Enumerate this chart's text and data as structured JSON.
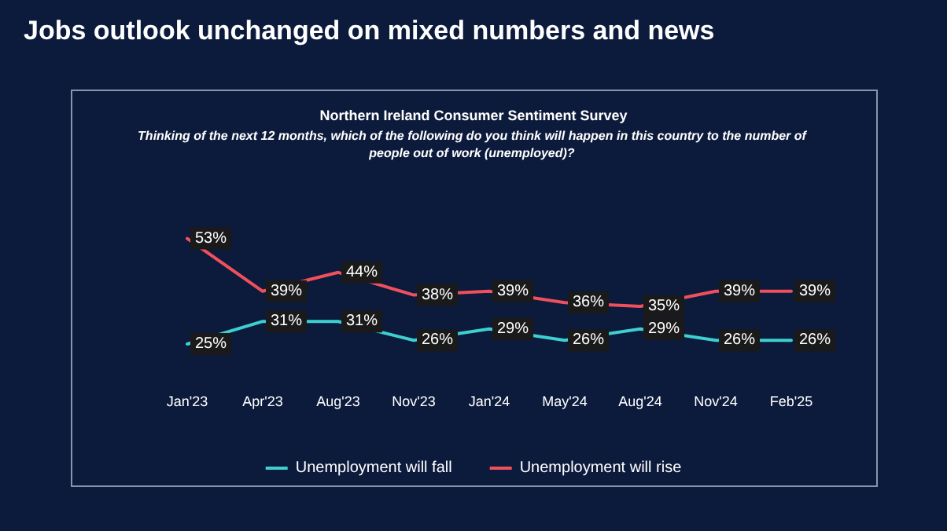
{
  "chart_data": {
    "type": "line",
    "title": "Jobs outlook unchanged on mixed numbers and news",
    "subtitle": "Northern Ireland Consumer Sentiment Survey",
    "annotations": [
      "Thinking of the next 12 months, which of the following do you think will happen in this country to the number of people out of work (unemployed)?"
    ],
    "categories": [
      "Jan'23",
      "Apr'23",
      "Aug'23",
      "Nov'23",
      "Jan'24",
      "May'24",
      "Aug'24",
      "Nov'24",
      "Feb'25"
    ],
    "series": [
      {
        "name": "Unemployment will fall",
        "color": "#3ecfd0",
        "values": [
          25,
          31,
          31,
          26,
          29,
          26,
          29,
          26,
          26
        ],
        "value_labels": [
          "25%",
          "31%",
          "31%",
          "26%",
          "29%",
          "26%",
          "29%",
          "26%",
          "26%"
        ]
      },
      {
        "name": "Unemployment will rise",
        "color": "#f0505c",
        "values": [
          53,
          39,
          44,
          38,
          39,
          36,
          35,
          39,
          39
        ],
        "value_labels": [
          "53%",
          "39%",
          "44%",
          "38%",
          "39%",
          "36%",
          "35%",
          "39%",
          "39%"
        ]
      }
    ],
    "tick_labels": "x",
    "legend": "bottom",
    "grid": false,
    "marker": "none",
    "line_style": "solid"
  }
}
